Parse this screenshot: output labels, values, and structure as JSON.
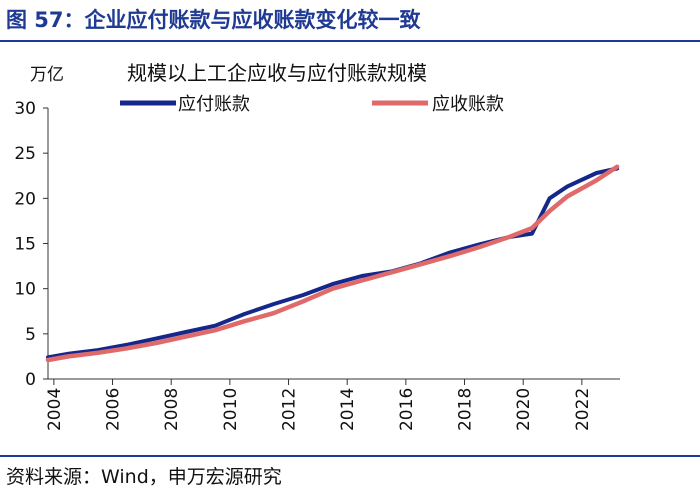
{
  "figure_title": "图 57：企业应付账款与应收账款变化较一致",
  "source": "资料来源：Wind，申万宏源研究",
  "colors": {
    "accent": "#1f3a93",
    "payables": "#14288c",
    "receivables": "#e06a6a"
  },
  "chart_data": {
    "type": "line",
    "title": "规模以上工企应收与应付账款规模",
    "unit_label": "万亿",
    "xlabel": "",
    "ylabel": "万亿",
    "xlim": [
      2003.8,
      2023.3
    ],
    "ylim": [
      0,
      30
    ],
    "yticks": [
      0,
      5,
      10,
      15,
      20,
      25,
      30
    ],
    "xticks": [
      2004,
      2006,
      2008,
      2010,
      2012,
      2014,
      2016,
      2018,
      2020,
      2022
    ],
    "legend_position": "top",
    "series": [
      {
        "name": "应付账款",
        "color": "#14288c",
        "x": [
          2003.8,
          2004.5,
          2005.5,
          2006.5,
          2007.5,
          2008.5,
          2009.5,
          2010.5,
          2011.5,
          2012.5,
          2013.5,
          2014.5,
          2015.5,
          2016.5,
          2017.5,
          2018.5,
          2019.5,
          2020.3,
          2020.9,
          2021.5,
          2022.5,
          2023.2
        ],
        "values": [
          2.4,
          2.8,
          3.2,
          3.8,
          4.5,
          5.2,
          5.9,
          7.2,
          8.3,
          9.3,
          10.5,
          11.4,
          11.9,
          12.8,
          14.0,
          14.9,
          15.7,
          16.1,
          20.0,
          21.3,
          22.8,
          23.3
        ]
      },
      {
        "name": "应收账款",
        "color": "#e06a6a",
        "x": [
          2003.8,
          2004.5,
          2005.5,
          2006.5,
          2007.5,
          2008.5,
          2009.5,
          2010.5,
          2011.5,
          2012.5,
          2013.5,
          2014.5,
          2015.5,
          2016.5,
          2017.5,
          2018.5,
          2019.5,
          2020.3,
          2020.9,
          2021.5,
          2022.5,
          2023.2
        ],
        "values": [
          2.1,
          2.5,
          2.9,
          3.4,
          4.0,
          4.7,
          5.4,
          6.4,
          7.3,
          8.6,
          10.0,
          10.9,
          11.8,
          12.7,
          13.6,
          14.6,
          15.7,
          16.7,
          18.6,
          20.2,
          22.0,
          23.5
        ]
      }
    ]
  }
}
